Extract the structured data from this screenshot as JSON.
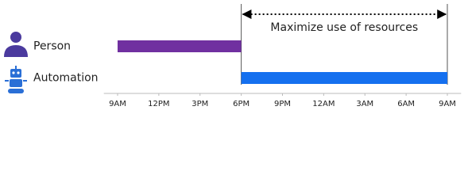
{
  "chart_data": {
    "type": "gantt",
    "categories": [
      "Person",
      "Automation"
    ],
    "series": [
      {
        "name": null,
        "colors": [
          "#7030a0",
          "#1570ef"
        ],
        "starts": [
          9,
          18
        ],
        "ends": [
          18,
          33
        ]
      }
    ],
    "annotation": {
      "text": "Maximize use of resources",
      "from": 18,
      "to": 33
    },
    "xlim": [
      8,
      34
    ],
    "xticks": [
      {
        "value": 9,
        "label": "9AM"
      },
      {
        "value": 12,
        "label": "12PM"
      },
      {
        "value": 15,
        "label": "3PM"
      },
      {
        "value": 18,
        "label": "6PM"
      },
      {
        "value": 21,
        "label": "9PM"
      },
      {
        "value": 24,
        "label": "12AM"
      },
      {
        "value": 27,
        "label": "3AM"
      },
      {
        "value": 30,
        "label": "6AM"
      },
      {
        "value": 33,
        "label": "9AM"
      }
    ]
  }
}
